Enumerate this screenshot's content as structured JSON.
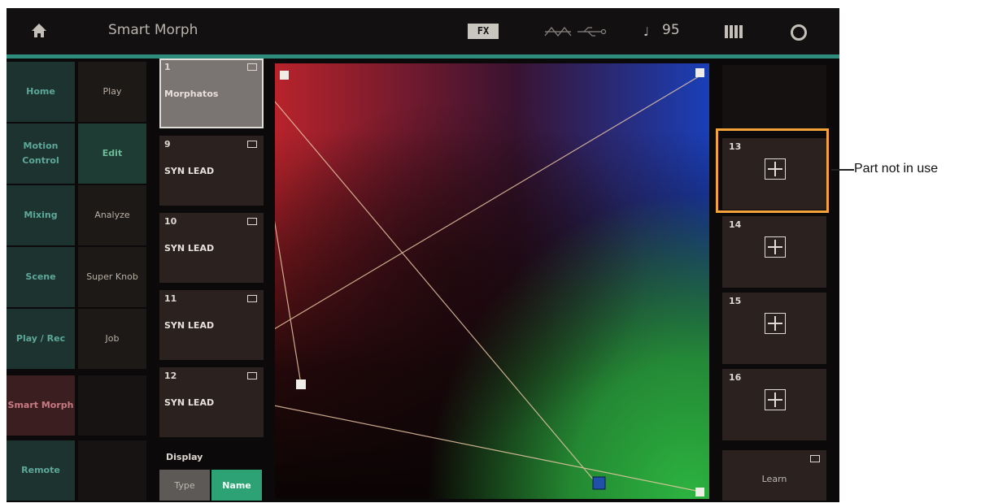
{
  "topbar": {
    "title": "Smart Morph",
    "fx_label": "FX",
    "tempo": "95"
  },
  "menu": {
    "main": [
      "Home",
      "Motion Control",
      "Mixing",
      "Scene",
      "Play / Rec",
      "Smart Morph",
      "Remote"
    ],
    "main_active": "Smart Morph",
    "sub": [
      "Play",
      "Edit",
      "Analyze",
      "Super Knob",
      "Job"
    ],
    "sub_active": "Edit"
  },
  "parts_left": [
    {
      "num": "1",
      "name": "Morphatos",
      "selected": true
    },
    {
      "num": "9",
      "name": "SYN LEAD"
    },
    {
      "num": "10",
      "name": "SYN LEAD"
    },
    {
      "num": "11",
      "name": "SYN LEAD"
    },
    {
      "num": "12",
      "name": "SYN LEAD"
    }
  ],
  "display": {
    "label": "Display",
    "type_label": "Type",
    "name_label": "Name",
    "selected": "Name"
  },
  "parts_right": [
    {
      "num": "13",
      "state": "not in use"
    },
    {
      "num": "14",
      "state": "not in use"
    },
    {
      "num": "15",
      "state": "not in use"
    },
    {
      "num": "16",
      "state": "not in use"
    }
  ],
  "learn_label": "Learn",
  "callout": "Part not in use",
  "colors": {
    "accent": "#2e8c7c",
    "callout": "#f4a23a",
    "map_red": "#c0262e",
    "map_blue": "#1c4fcc",
    "map_green": "#2cb440",
    "cursor": "#2050a8"
  }
}
